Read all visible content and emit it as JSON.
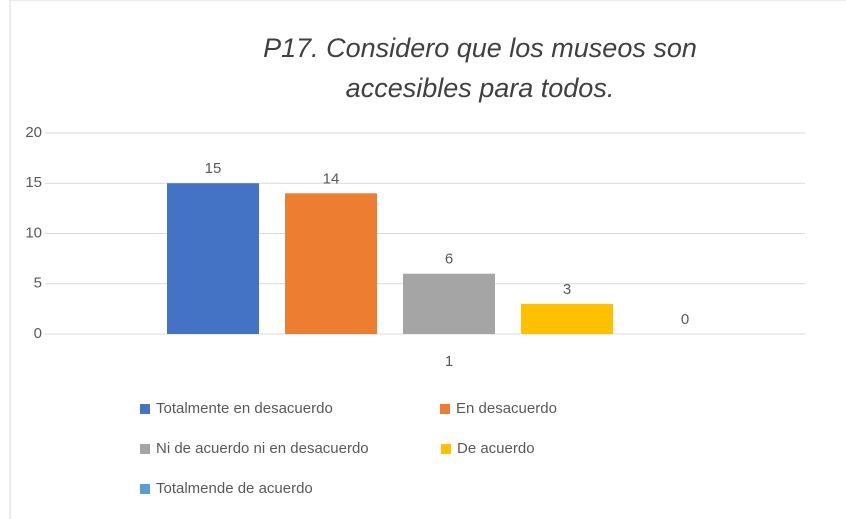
{
  "chart_data": {
    "type": "bar",
    "title": "P17. Considero que los museos son accesibles para todos.",
    "categories": [
      "1"
    ],
    "series": [
      {
        "name": "Totalmente en desacuerdo",
        "color": "#4472c4",
        "values": [
          15
        ]
      },
      {
        "name": "En desacuerdo",
        "color": "#ed7d31",
        "values": [
          14
        ]
      },
      {
        "name": "Ni de acuerdo ni en desacuerdo",
        "color": "#a5a5a5",
        "values": [
          6
        ]
      },
      {
        "name": "De acuerdo",
        "color": "#ffc000",
        "values": [
          3
        ]
      },
      {
        "name": "Totalmende de acuerdo",
        "color": "#5b9bd5",
        "values": [
          0
        ]
      }
    ],
    "ylim": [
      0,
      20
    ],
    "yticks": [
      0,
      5,
      10,
      15,
      20
    ],
    "grid": true,
    "legend": "bottom"
  }
}
